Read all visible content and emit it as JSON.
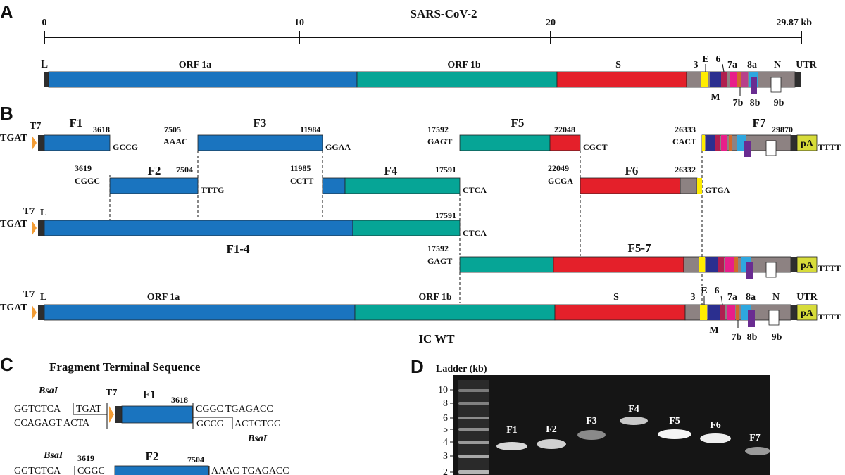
{
  "panels": {
    "a": "A",
    "b": "B",
    "c": "C",
    "d": "D"
  },
  "panel_a": {
    "title": "SARS-CoV-2",
    "ticks": [
      "0",
      "10",
      "20",
      "29.87 kb"
    ],
    "L": "L",
    "genes": {
      "orf1a": "ORF 1a",
      "orf1b": "ORF 1b",
      "s": "S",
      "g3": "3",
      "e": "E",
      "m": "M",
      "g6": "6",
      "g7a": "7a",
      "g7b": "7b",
      "g8a": "8a",
      "g8b": "8b",
      "n": "N",
      "g9b": "9b",
      "utr": "UTR"
    }
  },
  "panel_b": {
    "t7": "T7",
    "tgat": "TGAT",
    "L": "L",
    "tttt": "TTTT",
    "pa": "pA",
    "f1": {
      "name": "F1",
      "end": "3618",
      "right": "GCCG"
    },
    "f2": {
      "name": "F2",
      "start": "3619",
      "end": "7504",
      "left": "CGGC",
      "right": "TTTG"
    },
    "f3": {
      "name": "F3",
      "start": "7505",
      "end": "11984",
      "left": "AAAC",
      "right": "GGAA"
    },
    "f4": {
      "name": "F4",
      "start": "11985",
      "end": "17591",
      "left": "CCTT",
      "right": "CTCA"
    },
    "f5": {
      "name": "F5",
      "start": "17592",
      "end": "22048",
      "left": "GAGT",
      "right": "CGCT"
    },
    "f6": {
      "name": "F6",
      "start": "22049",
      "end": "26332",
      "left": "GCGA",
      "right": "GTGA"
    },
    "f7": {
      "name": "F7",
      "start": "26333",
      "end": "29870",
      "left": "CACT"
    },
    "f14": {
      "name": "F1-4",
      "end": "17591",
      "right": "CTCA"
    },
    "f57": {
      "name": "F5-7",
      "start": "17592",
      "left": "GAGT"
    },
    "ic": {
      "label": "IC WT",
      "orf1a": "ORF 1a",
      "orf1b": "ORF 1b",
      "s": "S",
      "g3": "3",
      "e": "E",
      "m": "M",
      "g6": "6",
      "g7a": "7a",
      "g7b": "7b",
      "g8a": "8a",
      "g8b": "8b",
      "n": "N",
      "g9b": "9b",
      "utr": "UTR"
    }
  },
  "panel_c": {
    "title": "Fragment Terminal Sequence",
    "bsai": "BsaI",
    "t7": "T7",
    "f1": {
      "name": "F1",
      "end": "3618",
      "top_left": "GGTCTCA",
      "top_box": "TGAT",
      "bot_left": "CCAGAGT ACTA",
      "top_right_box": "CGGC",
      "top_right": "TGAGACC",
      "bot_right_box": "GCCG",
      "bot_right": "ACTCTGG"
    },
    "f2": {
      "name": "F2",
      "start": "3619",
      "end": "7504",
      "top_left": "GGTCTCA",
      "top_box": "CGGC",
      "top_right": "AAAC TGAGACC"
    }
  },
  "panel_d": {
    "ladder_title": "Ladder (kb)",
    "ladder_ticks": [
      "10",
      "8",
      "6",
      "5",
      "4",
      "3",
      "2"
    ],
    "lanes": [
      "F1",
      "F2",
      "F3",
      "F4",
      "F5",
      "F6",
      "F7"
    ]
  },
  "colors": {
    "orf1a": "#1a74bf",
    "orf1b": "#06a596",
    "s": "#e4202a",
    "accessory": "#8d8282",
    "e": "#ffed00",
    "m": "#2b2f8f",
    "orf6": "#b01f4f",
    "orf7a": "#e81e8a",
    "orf8a": "#2ea7df",
    "orf8b": "#6a2c91",
    "n": "#8d8282",
    "utr": "#2e2e2e",
    "t7": "#f39c33",
    "pa": "#d7dc3a",
    "gel": "#151515"
  }
}
